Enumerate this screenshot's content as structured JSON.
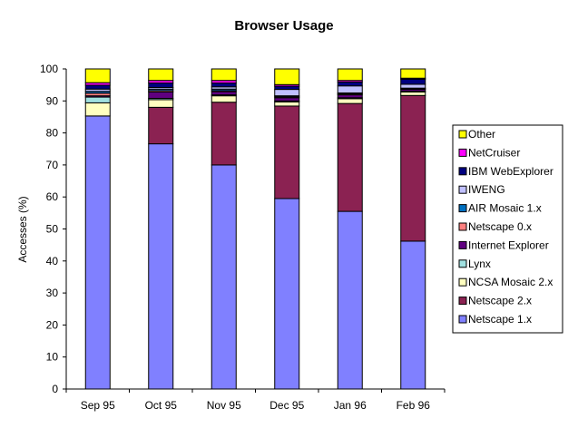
{
  "chart_data": {
    "type": "bar",
    "stacked": true,
    "title": "Browser Usage",
    "xlabel": "",
    "ylabel": "Accesses (%)",
    "ylim": [
      0,
      100
    ],
    "yticks": [
      0,
      10,
      20,
      30,
      40,
      50,
      60,
      70,
      80,
      90,
      100
    ],
    "categories": [
      "Sep 95",
      "Oct 95",
      "Nov 95",
      "Dec 95",
      "Jan 96",
      "Feb 96"
    ],
    "legend_position": "right",
    "series": [
      {
        "name": "Netscape 1.x",
        "color": "#8080ff",
        "values": [
          85.3,
          76.6,
          70.0,
          59.5,
          55.5,
          46.2
        ]
      },
      {
        "name": "Netscape 2.x",
        "color": "#8b2252",
        "values": [
          0.0,
          11.4,
          19.6,
          28.9,
          33.7,
          45.5
        ]
      },
      {
        "name": "NCSA Mosaic 2.x",
        "color": "#ffffc0",
        "values": [
          4.1,
          2.4,
          2.0,
          1.3,
          1.5,
          1.1
        ]
      },
      {
        "name": "Lynx",
        "color": "#a0e0e0",
        "values": [
          1.8,
          0.4,
          0.3,
          0.3,
          0.3,
          0.2
        ]
      },
      {
        "name": "Internet Explorer",
        "color": "#600080",
        "values": [
          0.4,
          2.0,
          1.0,
          1.0,
          0.9,
          0.6
        ]
      },
      {
        "name": "Netscape 0.x",
        "color": "#ff8080",
        "values": [
          0.8,
          0.4,
          0.3,
          0.3,
          0.3,
          0.2
        ]
      },
      {
        "name": "AIR Mosaic 1.x",
        "color": "#0070c0",
        "values": [
          0.6,
          0.5,
          0.5,
          0.3,
          0.3,
          0.2
        ]
      },
      {
        "name": "IWENG",
        "color": "#c0c0ff",
        "values": [
          0.7,
          0.5,
          0.7,
          2.0,
          2.2,
          1.2
        ]
      },
      {
        "name": "IBM WebExplorer",
        "color": "#000080",
        "values": [
          1.2,
          1.4,
          1.2,
          1.0,
          1.2,
          1.6
        ]
      },
      {
        "name": "NetCruiser",
        "color": "#ff00ff",
        "values": [
          0.8,
          0.8,
          0.8,
          0.5,
          0.5,
          0.3
        ]
      },
      {
        "name": "Other",
        "color": "#ffff00",
        "values": [
          4.3,
          3.6,
          3.6,
          4.9,
          3.6,
          2.9
        ]
      }
    ]
  }
}
